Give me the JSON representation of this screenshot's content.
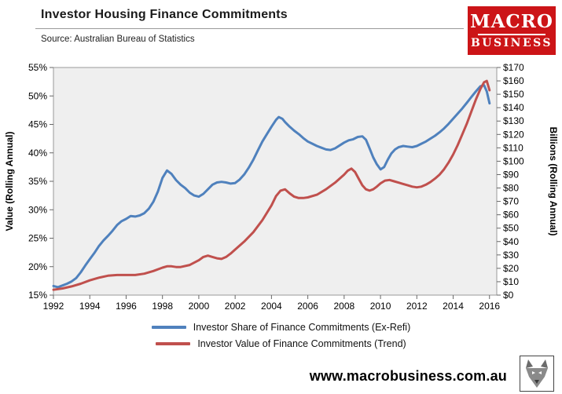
{
  "logo": {
    "top": "MACRO",
    "bottom": "BUSINESS",
    "brand_color": "#cc1417"
  },
  "footer": {
    "url": "www.macrobusiness.com.au"
  },
  "chart_data": {
    "type": "line",
    "title": "Investor Housing Finance Commitments",
    "source": "Source: Australian Bureau of Statistics",
    "plot_background": "#efefef",
    "x_range": [
      1992,
      2016.4
    ],
    "x_ticks": [
      1992,
      1994,
      1996,
      1998,
      2000,
      2002,
      2004,
      2006,
      2008,
      2010,
      2012,
      2014,
      2016
    ],
    "left_axis": {
      "label": "Value (Rolling Annual)",
      "min": 15,
      "max": 55,
      "step": 5,
      "format": "percent"
    },
    "right_axis": {
      "label": "Billions (Rolling Annual)",
      "min": 0,
      "max": 170,
      "step": 10,
      "format": "dollar"
    },
    "legend_position": "bottom",
    "grid": false,
    "series": [
      {
        "name": "Investor Share of Finance Commitments (Ex-Refi)",
        "axis": "left",
        "color": "#4f81bd",
        "points": [
          [
            1992.0,
            16.6
          ],
          [
            1992.25,
            16.4
          ],
          [
            1992.5,
            16.7
          ],
          [
            1992.75,
            17.0
          ],
          [
            1993.0,
            17.4
          ],
          [
            1993.25,
            18.0
          ],
          [
            1993.5,
            19.0
          ],
          [
            1993.75,
            20.2
          ],
          [
            1994.0,
            21.3
          ],
          [
            1994.25,
            22.4
          ],
          [
            1994.5,
            23.6
          ],
          [
            1994.75,
            24.6
          ],
          [
            1995.0,
            25.4
          ],
          [
            1995.25,
            26.3
          ],
          [
            1995.5,
            27.3
          ],
          [
            1995.75,
            28.0
          ],
          [
            1996.0,
            28.4
          ],
          [
            1996.25,
            28.9
          ],
          [
            1996.5,
            28.8
          ],
          [
            1996.75,
            29.0
          ],
          [
            1997.0,
            29.4
          ],
          [
            1997.25,
            30.2
          ],
          [
            1997.5,
            31.4
          ],
          [
            1997.75,
            33.2
          ],
          [
            1998.0,
            35.6
          ],
          [
            1998.25,
            36.9
          ],
          [
            1998.5,
            36.3
          ],
          [
            1998.75,
            35.2
          ],
          [
            1999.0,
            34.4
          ],
          [
            1999.25,
            33.8
          ],
          [
            1999.5,
            33.0
          ],
          [
            1999.75,
            32.5
          ],
          [
            2000.0,
            32.3
          ],
          [
            2000.25,
            32.8
          ],
          [
            2000.5,
            33.6
          ],
          [
            2000.75,
            34.4
          ],
          [
            2001.0,
            34.8
          ],
          [
            2001.25,
            34.9
          ],
          [
            2001.5,
            34.8
          ],
          [
            2001.75,
            34.6
          ],
          [
            2002.0,
            34.7
          ],
          [
            2002.25,
            35.3
          ],
          [
            2002.5,
            36.2
          ],
          [
            2002.75,
            37.4
          ],
          [
            2003.0,
            38.8
          ],
          [
            2003.25,
            40.4
          ],
          [
            2003.5,
            42.0
          ],
          [
            2003.75,
            43.3
          ],
          [
            2004.0,
            44.6
          ],
          [
            2004.25,
            45.8
          ],
          [
            2004.4,
            46.3
          ],
          [
            2004.6,
            46.0
          ],
          [
            2004.75,
            45.4
          ],
          [
            2005.0,
            44.6
          ],
          [
            2005.25,
            43.9
          ],
          [
            2005.5,
            43.3
          ],
          [
            2005.75,
            42.6
          ],
          [
            2006.0,
            42.0
          ],
          [
            2006.25,
            41.6
          ],
          [
            2006.5,
            41.2
          ],
          [
            2006.75,
            40.9
          ],
          [
            2007.0,
            40.6
          ],
          [
            2007.25,
            40.5
          ],
          [
            2007.5,
            40.8
          ],
          [
            2007.75,
            41.3
          ],
          [
            2008.0,
            41.8
          ],
          [
            2008.25,
            42.2
          ],
          [
            2008.5,
            42.4
          ],
          [
            2008.75,
            42.8
          ],
          [
            2009.0,
            42.9
          ],
          [
            2009.2,
            42.3
          ],
          [
            2009.4,
            40.8
          ],
          [
            2009.6,
            39.2
          ],
          [
            2009.8,
            38.0
          ],
          [
            2010.0,
            37.1
          ],
          [
            2010.2,
            37.5
          ],
          [
            2010.4,
            38.8
          ],
          [
            2010.6,
            39.9
          ],
          [
            2010.8,
            40.6
          ],
          [
            2011.0,
            41.0
          ],
          [
            2011.25,
            41.2
          ],
          [
            2011.5,
            41.1
          ],
          [
            2011.75,
            41.0
          ],
          [
            2012.0,
            41.2
          ],
          [
            2012.25,
            41.6
          ],
          [
            2012.5,
            42.0
          ],
          [
            2012.75,
            42.5
          ],
          [
            2013.0,
            43.0
          ],
          [
            2013.25,
            43.6
          ],
          [
            2013.5,
            44.3
          ],
          [
            2013.75,
            45.1
          ],
          [
            2014.0,
            46.0
          ],
          [
            2014.25,
            46.9
          ],
          [
            2014.5,
            47.8
          ],
          [
            2014.75,
            48.8
          ],
          [
            2015.0,
            49.8
          ],
          [
            2015.25,
            50.8
          ],
          [
            2015.5,
            51.7
          ],
          [
            2015.7,
            51.9
          ],
          [
            2015.85,
            50.8
          ],
          [
            2016.0,
            48.7
          ]
        ]
      },
      {
        "name": "Investor Value of Finance Commitments (Trend)",
        "axis": "right",
        "color": "#c0504d",
        "points": [
          [
            1992.0,
            4
          ],
          [
            1992.5,
            5
          ],
          [
            1993.0,
            6.5
          ],
          [
            1993.5,
            8.5
          ],
          [
            1994.0,
            11
          ],
          [
            1994.5,
            13
          ],
          [
            1995.0,
            14.5
          ],
          [
            1995.5,
            15
          ],
          [
            1996.0,
            15
          ],
          [
            1996.5,
            15
          ],
          [
            1997.0,
            16
          ],
          [
            1997.5,
            18
          ],
          [
            1998.0,
            20.5
          ],
          [
            1998.25,
            21.5
          ],
          [
            1998.5,
            21.5
          ],
          [
            1998.75,
            21
          ],
          [
            1999.0,
            21
          ],
          [
            1999.5,
            22.5
          ],
          [
            2000.0,
            26
          ],
          [
            2000.25,
            28.5
          ],
          [
            2000.5,
            29.5
          ],
          [
            2000.75,
            28.5
          ],
          [
            2001.0,
            27.5
          ],
          [
            2001.25,
            27
          ],
          [
            2001.5,
            28.5
          ],
          [
            2001.75,
            31
          ],
          [
            2002.0,
            34
          ],
          [
            2002.5,
            40
          ],
          [
            2003.0,
            47
          ],
          [
            2003.5,
            56
          ],
          [
            2004.0,
            67
          ],
          [
            2004.25,
            74
          ],
          [
            2004.5,
            78
          ],
          [
            2004.75,
            79
          ],
          [
            2005.0,
            76
          ],
          [
            2005.25,
            73.5
          ],
          [
            2005.5,
            72.5
          ],
          [
            2005.75,
            72.5
          ],
          [
            2006.0,
            73
          ],
          [
            2006.5,
            75
          ],
          [
            2007.0,
            79
          ],
          [
            2007.5,
            84
          ],
          [
            2008.0,
            90
          ],
          [
            2008.2,
            93
          ],
          [
            2008.4,
            94.5
          ],
          [
            2008.6,
            92
          ],
          [
            2008.8,
            87
          ],
          [
            2009.0,
            82
          ],
          [
            2009.2,
            79
          ],
          [
            2009.4,
            78
          ],
          [
            2009.6,
            79
          ],
          [
            2009.8,
            81
          ],
          [
            2010.0,
            83.5
          ],
          [
            2010.25,
            85.5
          ],
          [
            2010.5,
            86
          ],
          [
            2010.75,
            85
          ],
          [
            2011.0,
            84
          ],
          [
            2011.25,
            83
          ],
          [
            2011.5,
            82
          ],
          [
            2011.75,
            81
          ],
          [
            2012.0,
            80.5
          ],
          [
            2012.25,
            81
          ],
          [
            2012.5,
            82.5
          ],
          [
            2012.75,
            84.5
          ],
          [
            2013.0,
            87
          ],
          [
            2013.25,
            90
          ],
          [
            2013.5,
            94
          ],
          [
            2013.75,
            99
          ],
          [
            2014.0,
            105
          ],
          [
            2014.25,
            112
          ],
          [
            2014.5,
            120
          ],
          [
            2014.75,
            128
          ],
          [
            2015.0,
            137
          ],
          [
            2015.25,
            146
          ],
          [
            2015.5,
            154
          ],
          [
            2015.7,
            159
          ],
          [
            2015.85,
            160
          ],
          [
            2016.0,
            153
          ]
        ]
      }
    ]
  }
}
